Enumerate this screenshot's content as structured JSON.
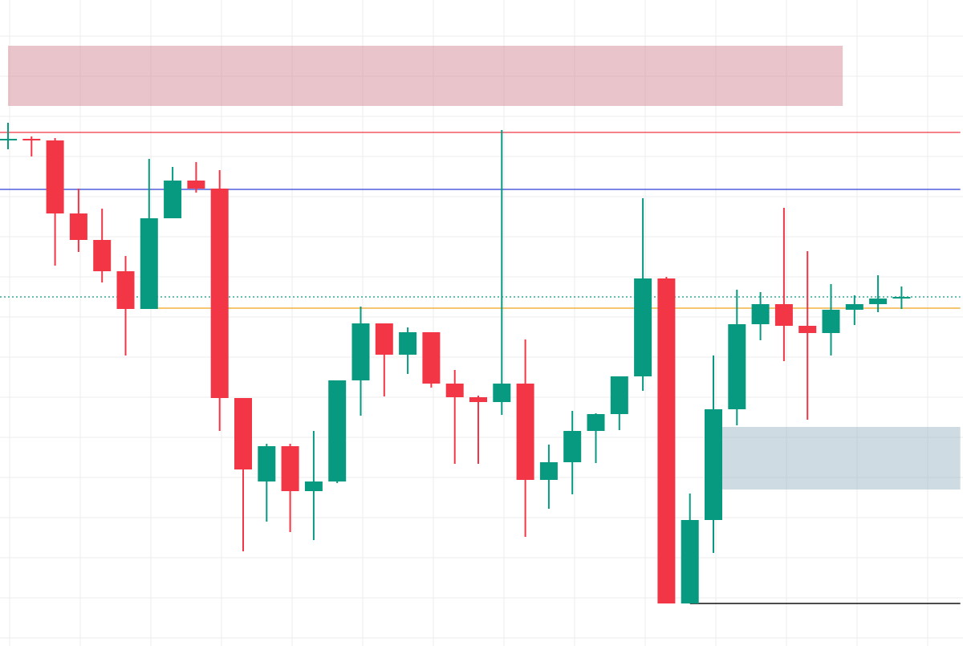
{
  "chart_data": {
    "type": "candlestick",
    "grid": true,
    "y_range": [
      0,
      805
    ],
    "colors": {
      "up": "#089981",
      "down": "#f23645",
      "grid": "#ececec",
      "supply_zone": "#d48a96",
      "demand_zone": "#9fb7c6",
      "red_line": "#f23645",
      "blue_line": "#2f3fd3",
      "orange_line": "#f0a21c",
      "dotted_line": "#089981",
      "black_line": "#111111"
    },
    "zones": [
      {
        "name": "supply-zone",
        "y_top": 748,
        "y_bottom": 673,
        "x_start": 0,
        "x_end": 35.5
      },
      {
        "name": "demand-zone",
        "y_top": 273,
        "y_bottom": 195,
        "x_start": 30.2,
        "x_end": 40.5
      }
    ],
    "levels": [
      {
        "name": "red-line",
        "y": 640,
        "style": "solid",
        "color": "#f23645",
        "x_start": -0.5,
        "x_end": 40.5
      },
      {
        "name": "blue-line",
        "y": 569,
        "style": "solid",
        "color": "#2f3fd3",
        "x_start": -0.5,
        "x_end": 40.5
      },
      {
        "name": "dotted-line",
        "y": 435,
        "style": "dotted",
        "color": "#089981",
        "x_start": -0.5,
        "x_end": 40.5
      },
      {
        "name": "orange-line",
        "y": 421,
        "style": "solid",
        "color": "#f0a21c",
        "x_start": 6,
        "x_end": 40.5
      },
      {
        "name": "black-line",
        "y": 53,
        "style": "solid",
        "color": "#111111",
        "x_start": 29,
        "x_end": 40.5
      }
    ],
    "candles": [
      {
        "o": 630,
        "h": 652,
        "l": 619,
        "c": 632
      },
      {
        "o": 632,
        "h": 635,
        "l": 610,
        "c": 630
      },
      {
        "o": 630,
        "h": 633,
        "l": 474,
        "c": 539
      },
      {
        "o": 539,
        "h": 570,
        "l": 491,
        "c": 506
      },
      {
        "o": 506,
        "h": 545,
        "l": 453,
        "c": 467
      },
      {
        "o": 467,
        "h": 486,
        "l": 362,
        "c": 420
      },
      {
        "o": 420,
        "h": 607,
        "l": 420,
        "c": 533
      },
      {
        "o": 533,
        "h": 597,
        "l": 533,
        "c": 580
      },
      {
        "o": 580,
        "h": 603,
        "l": 565,
        "c": 570
      },
      {
        "o": 570,
        "h": 593,
        "l": 268,
        "c": 309
      },
      {
        "o": 309,
        "h": 309,
        "l": 118,
        "c": 220
      },
      {
        "o": 205,
        "h": 252,
        "l": 155,
        "c": 249
      },
      {
        "o": 249,
        "h": 252,
        "l": 142,
        "c": 193
      },
      {
        "o": 193,
        "h": 268,
        "l": 132,
        "c": 205
      },
      {
        "o": 205,
        "h": 331,
        "l": 203,
        "c": 331
      },
      {
        "o": 331,
        "h": 423,
        "l": 287,
        "c": 402
      },
      {
        "o": 402,
        "h": 402,
        "l": 311,
        "c": 363
      },
      {
        "o": 363,
        "h": 397,
        "l": 339,
        "c": 391
      },
      {
        "o": 391,
        "h": 391,
        "l": 322,
        "c": 327
      },
      {
        "o": 327,
        "h": 344,
        "l": 227,
        "c": 310
      },
      {
        "o": 310,
        "h": 312,
        "l": 227,
        "c": 304
      },
      {
        "o": 304,
        "h": 643,
        "l": 288,
        "c": 327
      },
      {
        "o": 327,
        "h": 382,
        "l": 136,
        "c": 207
      },
      {
        "o": 207,
        "h": 251,
        "l": 171,
        "c": 229
      },
      {
        "o": 229,
        "h": 293,
        "l": 189,
        "c": 268
      },
      {
        "o": 268,
        "h": 290,
        "l": 228,
        "c": 289
      },
      {
        "o": 289,
        "h": 336,
        "l": 269,
        "c": 336
      },
      {
        "o": 336,
        "h": 558,
        "l": 318,
        "c": 458
      },
      {
        "o": 458,
        "h": 460,
        "l": 53,
        "c": 53
      },
      {
        "o": 53,
        "h": 190,
        "l": 53,
        "c": 157
      },
      {
        "o": 157,
        "h": 362,
        "l": 116,
        "c": 295
      },
      {
        "o": 295,
        "h": 444,
        "l": 275,
        "c": 401
      },
      {
        "o": 401,
        "h": 441,
        "l": 381,
        "c": 426
      },
      {
        "o": 426,
        "h": 546,
        "l": 355,
        "c": 399
      },
      {
        "o": 399,
        "h": 492,
        "l": 282,
        "c": 390
      },
      {
        "o": 390,
        "h": 451,
        "l": 362,
        "c": 419
      },
      {
        "o": 419,
        "h": 437,
        "l": 400,
        "c": 426
      },
      {
        "o": 426,
        "h": 462,
        "l": 416,
        "c": 433
      },
      {
        "o": 433,
        "h": 448,
        "l": 420,
        "c": 434
      }
    ]
  }
}
